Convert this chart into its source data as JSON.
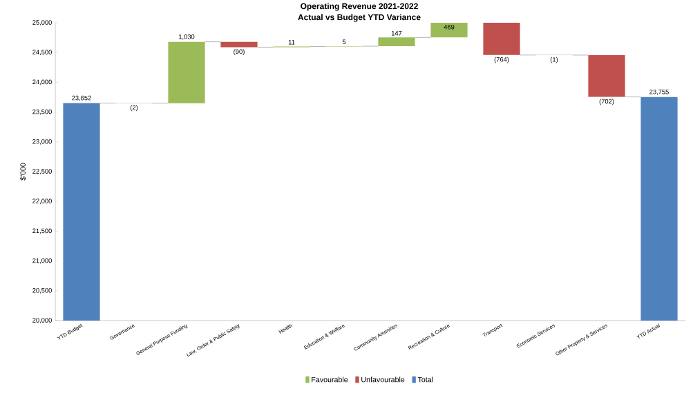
{
  "chart_data": {
    "type": "bar",
    "title": "Operating Revenue 2021-2022",
    "subtitle": "Actual vs Budget YTD Variance",
    "ylabel": "$'000",
    "categories": [
      "YTD Budget",
      "Governance",
      "General Purpose Funding",
      "Law, Order & Public Safety",
      "Health",
      "Education & Welfare",
      "Community Amenities",
      "Recreation & Culture",
      "Transport",
      "Economic Services",
      "Other Property & Services",
      "YTD Actual"
    ],
    "series": [
      {
        "name": "Favourable",
        "color": "#9bbb59",
        "base": [
          null,
          null,
          23650,
          null,
          24590,
          24601,
          24606,
          24753,
          null,
          null,
          null,
          null
        ],
        "values": [
          null,
          null,
          1030,
          null,
          11,
          5,
          147,
          469,
          null,
          null,
          null,
          null
        ],
        "value_labels": [
          null,
          null,
          "1,030",
          null,
          "11",
          "5",
          "147",
          "469",
          null,
          null,
          null,
          null
        ]
      },
      {
        "name": "Unfavourable",
        "color": "#c0504d",
        "base": [
          null,
          23652,
          null,
          24680,
          null,
          null,
          null,
          null,
          25222,
          24458,
          24457,
          null
        ],
        "values": [
          null,
          -2,
          null,
          -90,
          null,
          null,
          null,
          null,
          -764,
          -1,
          -702,
          null
        ],
        "value_labels": [
          null,
          "(2)",
          null,
          "(90)",
          null,
          null,
          null,
          null,
          "(764)",
          "(1)",
          "(702)",
          null
        ]
      },
      {
        "name": "Total",
        "color": "#4f81bd",
        "values": [
          23652,
          null,
          null,
          null,
          null,
          null,
          null,
          null,
          null,
          null,
          null,
          23755
        ],
        "value_labels": [
          "23,652",
          null,
          null,
          null,
          null,
          null,
          null,
          null,
          null,
          null,
          null,
          "23,755"
        ]
      }
    ],
    "ylim": [
      20000,
      25000
    ],
    "yticks": [
      {
        "value": 20000,
        "label": "20,000"
      },
      {
        "value": 20500,
        "label": "20,500"
      },
      {
        "value": 21000,
        "label": "21,000"
      },
      {
        "value": 21500,
        "label": "21,500"
      },
      {
        "value": 22000,
        "label": "22,000"
      },
      {
        "value": 22500,
        "label": "22,500"
      },
      {
        "value": 23000,
        "label": "23,000"
      },
      {
        "value": 23500,
        "label": "23,500"
      },
      {
        "value": 24000,
        "label": "24,000"
      },
      {
        "value": 24500,
        "label": "24,500"
      },
      {
        "value": 25000,
        "label": "25,000"
      }
    ],
    "legend": "bottom"
  }
}
